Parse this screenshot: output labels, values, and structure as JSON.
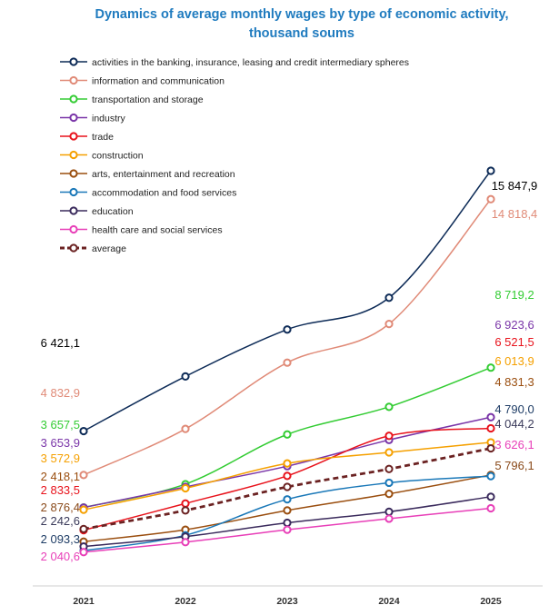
{
  "chart_data": {
    "type": "line",
    "title_line1": "Dynamics of average monthly wages by type of economic activity,",
    "title_line2": "thousand soums",
    "title_color": "#1f7bbf",
    "x": [
      "2021",
      "2022",
      "2023",
      "2024",
      "2025"
    ],
    "xlabel": "",
    "ylabel": "",
    "grid": false,
    "legend_position": "top-left",
    "series": [
      {
        "name": "activities in the banking, insurance, leasing and credit intermediary spheres",
        "color": "#0d2b57",
        "dashed": false,
        "values": [
          6421.1,
          8400,
          10100,
          11250,
          15847.9
        ],
        "start_label": "6 421,1",
        "end_label": "15 847,9",
        "start_label_color": "#000000",
        "end_label_color": "#000000"
      },
      {
        "name": "information and communication",
        "color": "#e08a77",
        "dashed": false,
        "values": [
          4832.9,
          6500,
          8900,
          10300,
          14818.4
        ],
        "start_label": "4 832,9",
        "end_label": "14 818,4",
        "start_label_color": "#e08a77",
        "end_label_color": "#e08a77"
      },
      {
        "name": "transportation and storage",
        "color": "#33cc33",
        "dashed": false,
        "values": [
          3657.5,
          4500,
          6300,
          7300,
          8719.2
        ],
        "start_label": "3 657,5",
        "end_label": "8 719,2",
        "start_label_color": "#33cc33",
        "end_label_color": "#33cc33"
      },
      {
        "name": "industry",
        "color": "#7a35a8",
        "dashed": false,
        "values": [
          3653.9,
          4400,
          5150,
          6100,
          6923.6
        ],
        "start_label": "3 653,9",
        "end_label": "6 923,6",
        "start_label_color": "#7a35a8",
        "end_label_color": "#7a35a8"
      },
      {
        "name": "trade",
        "color": "#e8121b",
        "dashed": false,
        "values": [
          2833.5,
          3800,
          4800,
          6250,
          6521.5
        ],
        "start_label": "2 833,5",
        "end_label": "6 521,5",
        "start_label_color": "#e8121b",
        "end_label_color": "#e8121b"
      },
      {
        "name": "construction",
        "color": "#f5a000",
        "dashed": false,
        "values": [
          3572.9,
          4350,
          5250,
          5650,
          6013.9
        ],
        "start_label": "3 572,9",
        "end_label": "6 013,9",
        "start_label_color": "#f5a000",
        "end_label_color": "#f5a000"
      },
      {
        "name": "arts, entertainment and recreation",
        "color": "#9a4e0f",
        "dashed": false,
        "values": [
          2418.1,
          2850,
          3550,
          4150,
          4831.3
        ],
        "start_label": "2 418,1",
        "end_label": "4 831,3",
        "start_label_color": "#9a4e0f",
        "end_label_color": "#9a4e0f"
      },
      {
        "name": "accommodation and food services",
        "color": "#1a78b8",
        "dashed": false,
        "values": [
          2093.3,
          2650,
          3950,
          4550,
          4790.0
        ],
        "start_label": "2 093,3",
        "end_label": "4 790,0",
        "start_label_color": "#1f3d66",
        "end_label_color": "#1f3d66"
      },
      {
        "name": "education",
        "color": "#3a2a5c",
        "dashed": false,
        "values": [
          2242.6,
          2600,
          3100,
          3500,
          4044.2
        ],
        "start_label": "2 242,6",
        "end_label": "4 044,2",
        "start_label_color": "#3a3a5a",
        "end_label_color": "#3a3a5a"
      },
      {
        "name": "health care and social services",
        "color": "#e83fb8",
        "dashed": false,
        "values": [
          2040.6,
          2400,
          2850,
          3250,
          3626.1
        ],
        "start_label": "2 040,6",
        "end_label": "3 626,1",
        "start_label_color": "#e83fb8",
        "end_label_color": "#e83fb8"
      },
      {
        "name": "average",
        "color": "#6b2222",
        "dashed": true,
        "values": [
          2876.4,
          3550,
          4400,
          5050,
          5796.1
        ],
        "start_label": "2 876,4",
        "end_label": "5 796,1",
        "start_label_color": "#8a4a1a",
        "end_label_color": "#8a4a1a"
      }
    ]
  }
}
